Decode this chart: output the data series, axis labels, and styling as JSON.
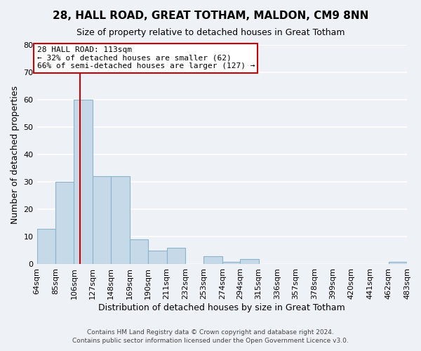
{
  "title": "28, HALL ROAD, GREAT TOTHAM, MALDON, CM9 8NN",
  "subtitle": "Size of property relative to detached houses in Great Totham",
  "xlabel": "Distribution of detached houses by size in Great Totham",
  "ylabel": "Number of detached properties",
  "bar_color": "#c6d9e8",
  "bar_edge_color": "#8ab4cc",
  "background_color": "#eef2f7",
  "grid_color": "#ffffff",
  "bin_edges": [
    64,
    85,
    106,
    127,
    148,
    169,
    190,
    211,
    232,
    253,
    274,
    294,
    315,
    336,
    357,
    378,
    399,
    420,
    441,
    462,
    483
  ],
  "bin_labels": [
    "64sqm",
    "85sqm",
    "106sqm",
    "127sqm",
    "148sqm",
    "169sqm",
    "190sqm",
    "211sqm",
    "232sqm",
    "253sqm",
    "274sqm",
    "294sqm",
    "315sqm",
    "336sqm",
    "357sqm",
    "378sqm",
    "399sqm",
    "420sqm",
    "441sqm",
    "462sqm",
    "483sqm"
  ],
  "counts": [
    13,
    30,
    60,
    32,
    32,
    9,
    5,
    6,
    0,
    3,
    1,
    2,
    0,
    0,
    0,
    0,
    0,
    0,
    0,
    1,
    0
  ],
  "vline_color": "#cc0000",
  "vline_x": 113,
  "annotation_title": "28 HALL ROAD: 113sqm",
  "annotation_line1": "← 32% of detached houses are smaller (62)",
  "annotation_line2": "66% of semi-detached houses are larger (127) →",
  "annotation_box_color": "#ffffff",
  "annotation_box_edge": "#cc0000",
  "ylim": [
    0,
    80
  ],
  "yticks": [
    0,
    10,
    20,
    30,
    40,
    50,
    60,
    70,
    80
  ],
  "title_fontsize": 11,
  "subtitle_fontsize": 9,
  "xlabel_fontsize": 9,
  "ylabel_fontsize": 9,
  "tick_fontsize": 8,
  "footer1": "Contains HM Land Registry data © Crown copyright and database right 2024.",
  "footer2": "Contains public sector information licensed under the Open Government Licence v3.0."
}
